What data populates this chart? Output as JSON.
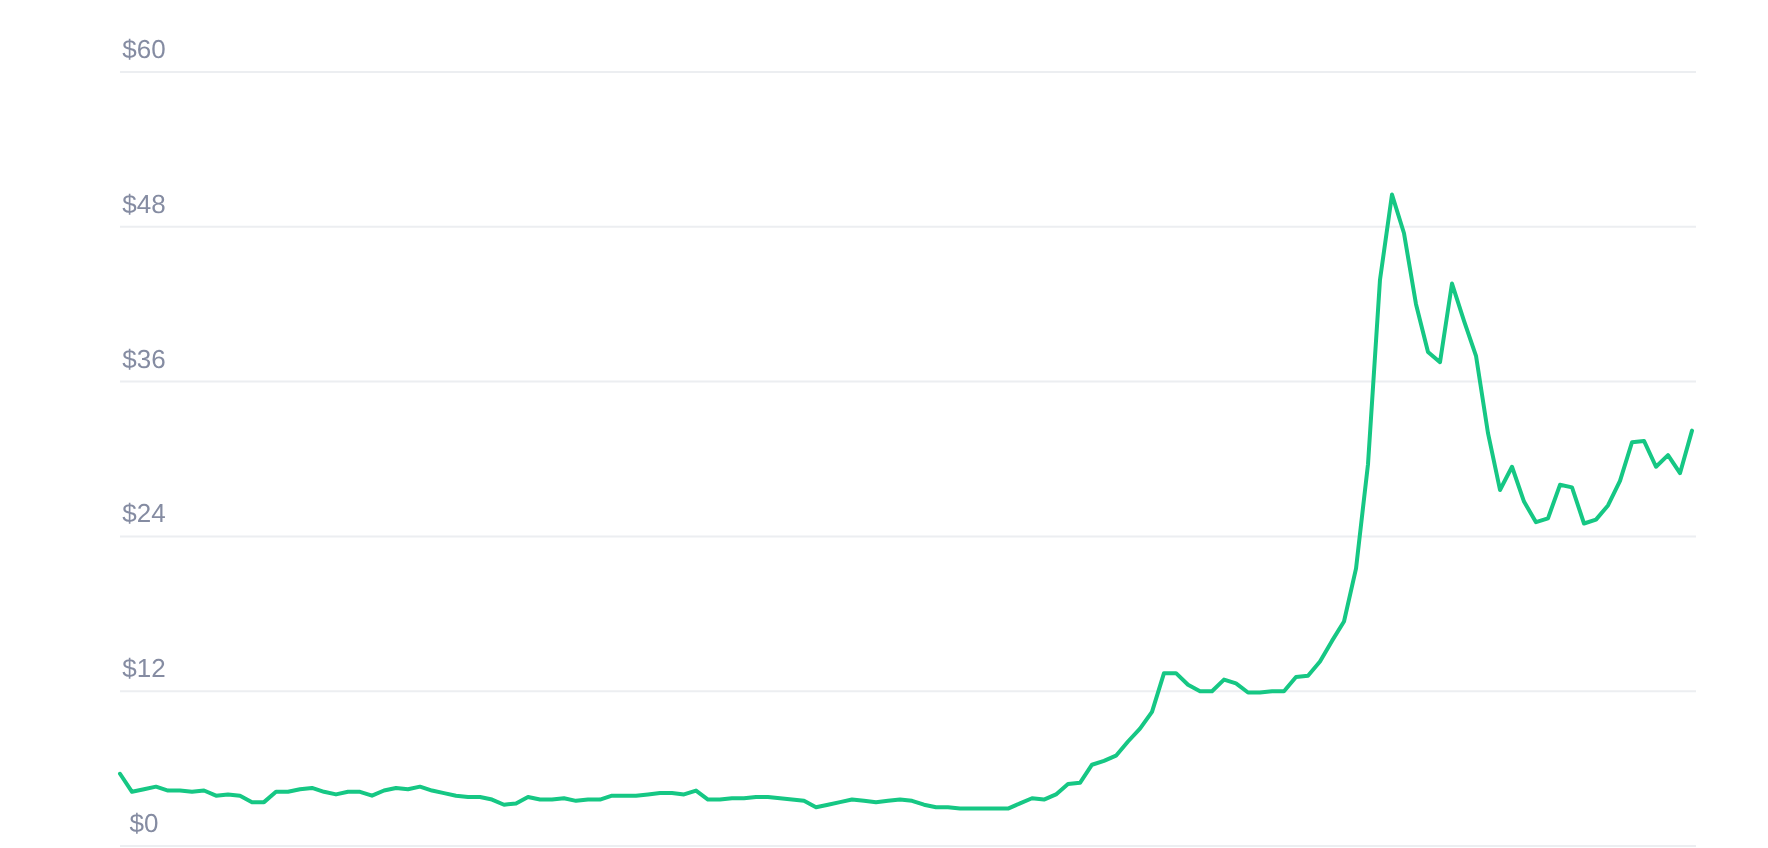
{
  "chart_data": {
    "type": "line",
    "categories": [
      null,
      null,
      null,
      null,
      null,
      null,
      null,
      null,
      null,
      null,
      null,
      null,
      null,
      null,
      null,
      null,
      null,
      null,
      null,
      null,
      null,
      null,
      null,
      null,
      null,
      null,
      null,
      null,
      null,
      null,
      null,
      null,
      null,
      null,
      null,
      null,
      null,
      null,
      null,
      null,
      null,
      null,
      null,
      null,
      null,
      null,
      null,
      null,
      null,
      null,
      null,
      null,
      null,
      null,
      null,
      null,
      null,
      null,
      null,
      null,
      null,
      null,
      null,
      null,
      null,
      null,
      null,
      null,
      null,
      null,
      null,
      null,
      null,
      null,
      null,
      null,
      null,
      null,
      null,
      null,
      null,
      null,
      null,
      null,
      null,
      null,
      null,
      null,
      null,
      null,
      null,
      null,
      null,
      null,
      null,
      null,
      null,
      null,
      null,
      null,
      null,
      null,
      null,
      null,
      null,
      null,
      null,
      null,
      null,
      null,
      null,
      null,
      null,
      null,
      null,
      null,
      null,
      null,
      null,
      null,
      null,
      null,
      null,
      null,
      null,
      null,
      null,
      null,
      null,
      null,
      null,
      null
    ],
    "series": [
      {
        "color": "#16c784",
        "values": [
          5.6,
          4.2,
          4.4,
          4.6,
          4.3,
          4.3,
          4.2,
          4.3,
          3.9,
          4.0,
          3.9,
          3.4,
          3.4,
          4.2,
          4.2,
          4.4,
          4.5,
          4.2,
          4.0,
          4.2,
          4.2,
          3.9,
          4.3,
          4.5,
          4.4,
          4.6,
          4.3,
          4.1,
          3.9,
          3.8,
          3.8,
          3.6,
          3.2,
          3.3,
          3.8,
          3.6,
          3.6,
          3.7,
          3.5,
          3.6,
          3.6,
          3.9,
          3.9,
          3.9,
          4.0,
          4.1,
          4.1,
          4.0,
          4.3,
          3.6,
          3.6,
          3.7,
          3.7,
          3.8,
          3.8,
          3.7,
          3.6,
          3.5,
          3.0,
          3.2,
          3.4,
          3.6,
          3.5,
          3.4,
          3.5,
          3.6,
          3.5,
          3.2,
          3.0,
          3.0,
          2.9,
          2.9,
          2.9,
          2.9,
          2.9,
          3.3,
          3.7,
          3.6,
          4.0,
          4.8,
          4.9,
          6.3,
          6.6,
          7.0,
          8.1,
          9.1,
          10.4,
          13.4,
          13.4,
          12.5,
          12.0,
          12.0,
          12.9,
          12.6,
          11.9,
          11.9,
          12.0,
          12.0,
          13.1,
          13.2,
          14.3,
          15.9,
          17.4,
          21.5,
          29.6,
          43.9,
          50.5,
          47.5,
          42.0,
          38.3,
          37.5,
          43.6,
          40.7,
          38.0,
          32.0,
          27.6,
          29.4,
          26.7,
          25.1,
          25.4,
          28.0,
          27.8,
          25.0,
          25.3,
          26.4,
          28.3,
          31.3,
          31.4,
          29.4,
          30.3,
          28.9,
          32.2
        ]
      }
    ],
    "ylim": [
      0,
      60
    ],
    "yticks": [
      {
        "value": 0,
        "label": "$0"
      },
      {
        "value": 12,
        "label": "$12"
      },
      {
        "value": 24,
        "label": "$24"
      },
      {
        "value": 36,
        "label": "$36"
      },
      {
        "value": 48,
        "label": "$48"
      },
      {
        "value": 60,
        "label": "$60"
      }
    ],
    "grid": "y",
    "marker": "none",
    "line_style": "solid"
  }
}
